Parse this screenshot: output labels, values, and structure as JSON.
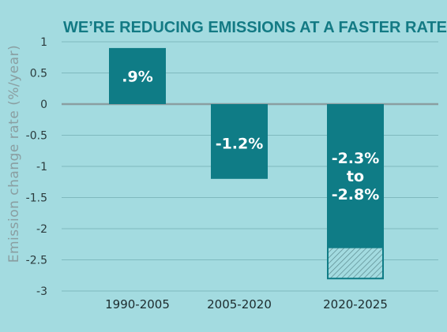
{
  "chart_data": {
    "type": "bar",
    "title": "WE’RE REDUCING EMISSIONS AT A FASTER RATE",
    "ylabel": "Emission change rate (%/year)",
    "xlabel": "",
    "ylim": [
      -3,
      1
    ],
    "yticks": [
      "1",
      "0.5",
      "0",
      "-0.5",
      "-1",
      "-1.5",
      "-2",
      "-2.5",
      "-3"
    ],
    "grid": true,
    "categories": [
      "1990-2005",
      "2005-2020",
      "2020-2025"
    ],
    "values": [
      0.9,
      -1.2,
      -2.3
    ],
    "range_extension": {
      "category": "2020-2025",
      "from": -2.3,
      "to": -2.8,
      "pattern": "hatched"
    },
    "data_labels": [
      ".9%",
      "-1.2%",
      "-2.3%\nto\n-2.8%"
    ],
    "colors": {
      "bar": "#0f7c86",
      "background": "#a3dbe0",
      "grid": "#7fb9be",
      "zero_line": "#8a9ea1",
      "title": "#137a84"
    }
  }
}
